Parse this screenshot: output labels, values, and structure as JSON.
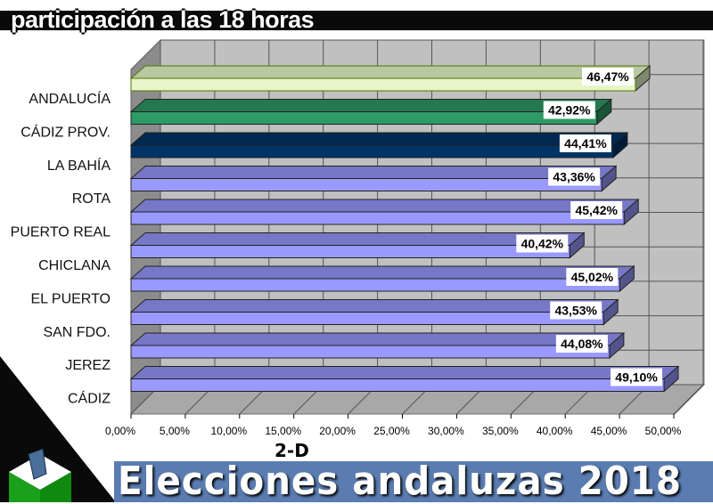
{
  "header": {
    "title": "participación a las 18 horas"
  },
  "footer": {
    "banner": "Elecciones andaluzas 2018",
    "tag": "2-D"
  },
  "chart_data": {
    "type": "bar",
    "orientation": "horizontal",
    "style": "3d",
    "title": "participación a las 18 horas",
    "categories": [
      "ANDALUCÍA",
      "CÁDIZ PROV.",
      "LA BAHÍA",
      "ROTA",
      "PUERTO REAL",
      "CHICLANA",
      "EL PUERTO",
      "SAN FDO.",
      "JEREZ",
      "CÁDIZ"
    ],
    "values": [
      46.47,
      42.92,
      44.41,
      43.36,
      45.42,
      40.42,
      45.02,
      43.53,
      44.08,
      49.1
    ],
    "value_labels": [
      "46,47%",
      "42,92%",
      "44,41%",
      "43,36%",
      "45,42%",
      "40,42%",
      "45,02%",
      "43,53%",
      "44,08%",
      "49,10%"
    ],
    "colors": [
      "#e8f5c8",
      "#2e9a66",
      "#003366",
      "#9999ff",
      "#9999ff",
      "#9999ff",
      "#9999ff",
      "#9999ff",
      "#9999ff",
      "#9999ff"
    ],
    "xlim": [
      0,
      50
    ],
    "xticks": [
      "0,00%",
      "5,00%",
      "10,00%",
      "15,00%",
      "20,00%",
      "25,00%",
      "30,00%",
      "35,00%",
      "40,00%",
      "45,00%",
      "50,00%"
    ],
    "grid": true,
    "legend": "none"
  }
}
